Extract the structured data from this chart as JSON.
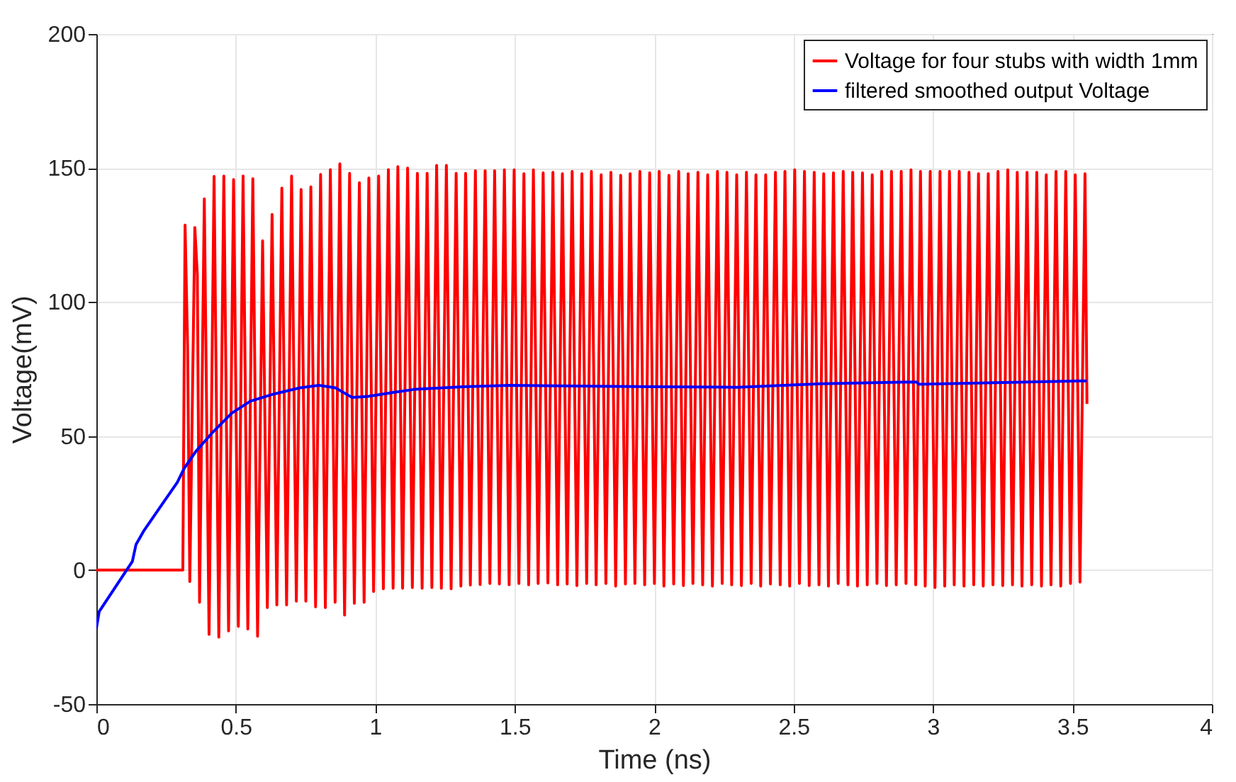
{
  "chart_data": {
    "type": "line",
    "xlabel": "Time (ns)",
    "ylabel": "Voltage(mV)",
    "xlim": [
      0,
      4
    ],
    "ylim": [
      -50,
      200
    ],
    "xticks": [
      0,
      0.5,
      1,
      1.5,
      2,
      2.5,
      3,
      3.5,
      4
    ],
    "yticks": [
      -50,
      0,
      50,
      100,
      150,
      200
    ],
    "grid": true,
    "legend": "top right",
    "series": [
      {
        "name": "Voltage for four stubs with width 1mm",
        "color": "#ff0000",
        "x": [
          0,
          0.31,
          0.318,
          0.327,
          0.335,
          0.353,
          0.362,
          0.37,
          0.387,
          0.404,
          0.422,
          0.439,
          0.457,
          0.474,
          0.492,
          0.509,
          0.526,
          0.543,
          0.561,
          0.578,
          0.596,
          0.613,
          0.63,
          0.647,
          0.665,
          0.682,
          0.7,
          0.717,
          0.734,
          0.751,
          0.769,
          0.786,
          0.804,
          0.821,
          0.839,
          0.856,
          0.873,
          0.89,
          0.908,
          0.925,
          0.943,
          0.96,
          0.977,
          0.994,
          1.012,
          1.029,
          1.047,
          1.064,
          1.081,
          1.098,
          1.116,
          1.133,
          1.151,
          1.168,
          1.186,
          1.203,
          1.22,
          1.237,
          1.255,
          1.272,
          1.29,
          1.307,
          1.324,
          1.341,
          1.359,
          1.376,
          1.394,
          1.411,
          1.428,
          1.445,
          1.463,
          1.48,
          1.498,
          1.515,
          1.533,
          1.55,
          1.567,
          1.584,
          1.602,
          1.619,
          1.637,
          1.654,
          1.671,
          1.688,
          1.706,
          1.723,
          1.741,
          1.758,
          1.775,
          1.792,
          1.81,
          1.827,
          1.845,
          1.862,
          1.88,
          1.897,
          1.914,
          1.931,
          1.949,
          1.966,
          1.984,
          2.001,
          2.018,
          2.035,
          2.053,
          2.07,
          2.088,
          2.105,
          2.122,
          2.139,
          2.157,
          2.174,
          2.192,
          2.209,
          2.227,
          2.244,
          2.261,
          2.278,
          2.296,
          2.313,
          2.331,
          2.348,
          2.365,
          2.382,
          2.4,
          2.417,
          2.435,
          2.452,
          2.469,
          2.486,
          2.504,
          2.521,
          2.539,
          2.556,
          2.574,
          2.591,
          2.608,
          2.625,
          2.643,
          2.66,
          2.678,
          2.695,
          2.712,
          2.729,
          2.747,
          2.764,
          2.782,
          2.799,
          2.816,
          2.833,
          2.851,
          2.868,
          2.886,
          2.903,
          2.921,
          2.938,
          2.955,
          2.972,
          2.99,
          3.007,
          3.025,
          3.042,
          3.059,
          3.076,
          3.094,
          3.111,
          3.129,
          3.146,
          3.163,
          3.18,
          3.198,
          3.215,
          3.233,
          3.25,
          3.268,
          3.285,
          3.302,
          3.319,
          3.337,
          3.354,
          3.372,
          3.389,
          3.406,
          3.423,
          3.441,
          3.458,
          3.476,
          3.493,
          3.51,
          3.527,
          3.545,
          3.552
        ],
        "values": [
          0,
          0,
          128.7,
          84,
          -4.3,
          127.8,
          110,
          -12,
          138.5,
          -24,
          146.9,
          -25,
          147,
          -22.7,
          145.7,
          -21,
          147,
          -22,
          146,
          -24.7,
          122.8,
          -14,
          132.7,
          -13,
          142.5,
          -13,
          147,
          -11.6,
          142,
          -11.6,
          143,
          -13.7,
          147.6,
          -14,
          149.4,
          -12,
          151.6,
          -16.8,
          148,
          -12.4,
          144.5,
          -12,
          146.3,
          -8,
          147,
          -7,
          149.4,
          -6.8,
          150.5,
          -6.8,
          150,
          -6.5,
          148,
          -6.8,
          148,
          -6.5,
          151,
          -6.8,
          151,
          -7,
          148,
          -6,
          148,
          -5.6,
          149,
          -5.4,
          149,
          -5,
          149,
          -5.2,
          149.3,
          -5.5,
          149.3,
          -5,
          147.9,
          -5.5,
          149.3,
          -5,
          148.2,
          -4.8,
          148.4,
          -5.5,
          147.9,
          -5.2,
          148.7,
          -5.8,
          147.9,
          -5,
          148.7,
          -5.5,
          147.5,
          -5,
          148.4,
          -6,
          147.3,
          -5.2,
          147.9,
          -5,
          148.7,
          -5.5,
          148.2,
          -5,
          148.7,
          -6,
          147.3,
          -5.2,
          148.7,
          -5.8,
          147.9,
          -5,
          148.4,
          -5.5,
          147.5,
          -6,
          148.7,
          -5,
          148.4,
          -5.5,
          147.5,
          -5.8,
          148.4,
          -5,
          147.5,
          -6,
          147.5,
          -5.2,
          148.4,
          -5.5,
          148.7,
          -6,
          149.3,
          -5,
          148.7,
          -5.8,
          148.4,
          -5.5,
          147.9,
          -6,
          148.2,
          -5,
          148.7,
          -5.5,
          148.4,
          -6,
          148.2,
          -5.5,
          147.5,
          -5,
          148.7,
          -5.8,
          148.7,
          -5.5,
          148.7,
          -5,
          149.3,
          -5.5,
          148.7,
          -6,
          148.7,
          -6.5,
          148.7,
          -6,
          148.7,
          -5.5,
          148.7,
          -6,
          148.4,
          -5.5,
          147.9,
          -6,
          147.9,
          -5.5,
          148.7,
          -5.8,
          149.3,
          -5.5,
          148.4,
          -6,
          148.4,
          -5.5,
          148.4,
          -6,
          147.5,
          -5.5,
          148.7,
          -6,
          148.7,
          -5,
          147.5,
          -4.5,
          147.9,
          62
        ]
      },
      {
        "name": "filtered smoothed output Voltage",
        "color": "#0000ff",
        "x": [
          0,
          0.01,
          0.129,
          0.142,
          0.171,
          0.23,
          0.29,
          0.315,
          0.357,
          0.417,
          0.485,
          0.552,
          0.637,
          0.73,
          0.798,
          0.857,
          0.917,
          0.976,
          1.061,
          1.146,
          1.315,
          1.484,
          2.0,
          2.3,
          2.6,
          2.94,
          2.95,
          3.551
        ],
        "values": [
          -21.8,
          -15.5,
          3.2,
          9.5,
          14.8,
          23.7,
          32.7,
          38,
          44.3,
          51.4,
          58.5,
          63,
          65.7,
          68,
          68.9,
          68,
          64.4,
          64.8,
          66.2,
          67.5,
          68.4,
          68.9,
          68.4,
          68.2,
          69.5,
          70.2,
          69.3,
          70.6
        ]
      }
    ]
  }
}
